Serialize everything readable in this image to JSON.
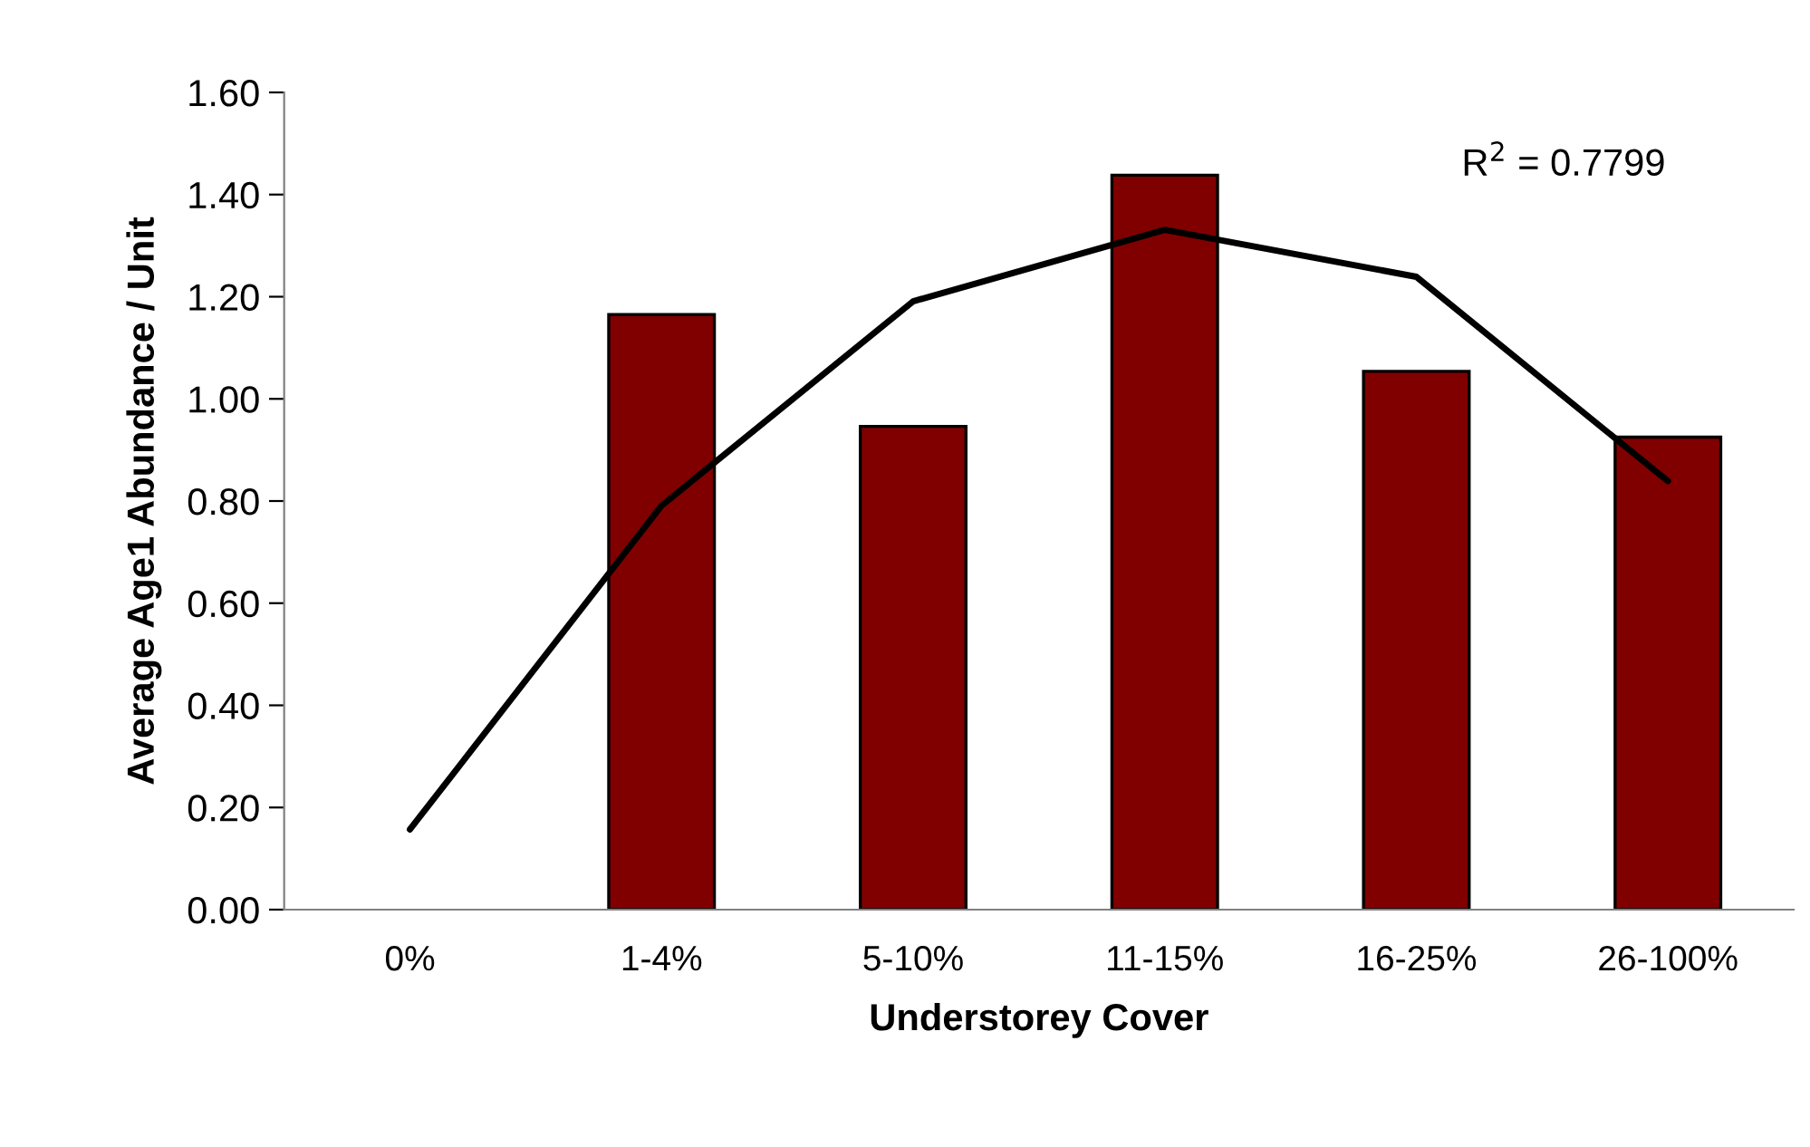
{
  "chart_data": {
    "type": "bar",
    "xlabel": "Understorey Cover",
    "ylabel": "Average Age1 Abundance / Unit",
    "categories": [
      "0%",
      "1-4%",
      "5-10%",
      "11-15%",
      "16-25%",
      "26-100%"
    ],
    "series": [
      {
        "color": "#800000",
        "values": [
          null,
          1.165,
          0.946,
          1.438,
          1.054,
          0.925
        ]
      },
      {
        "type": "line",
        "color": "#000000",
        "values": [
          0.157,
          0.791,
          1.191,
          1.331,
          1.239,
          0.839
        ]
      }
    ],
    "annotations": [
      "R$^{2}$ = 0.7799"
    ],
    "ylim": [
      0,
      1.6
    ],
    "yticks": [
      {
        "value": 0,
        "label": "0.00"
      },
      {
        "value": 0.2,
        "label": "0.20"
      },
      {
        "value": 0.4,
        "label": "0.40"
      },
      {
        "value": 0.6,
        "label": "0.60"
      },
      {
        "value": 0.8,
        "label": "0.80"
      },
      {
        "value": 1.0,
        "label": "1.00"
      },
      {
        "value": 1.2,
        "label": "1.20"
      },
      {
        "value": 1.4,
        "label": "1.40"
      },
      {
        "value": 1.6,
        "label": "1.60"
      }
    ],
    "grid": false,
    "legend": false
  }
}
